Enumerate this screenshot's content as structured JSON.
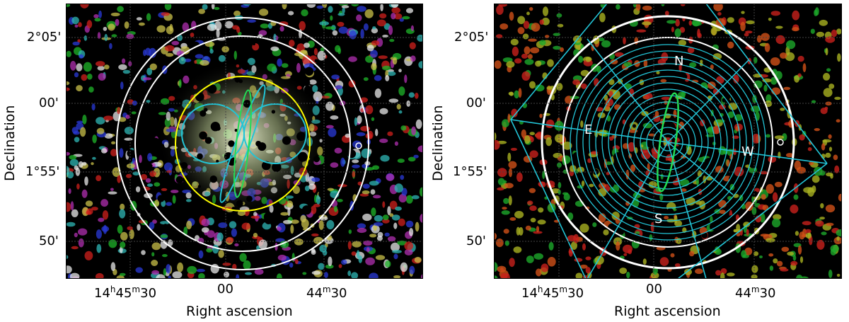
{
  "panels": [
    {
      "id": "left",
      "y_ticks": [
        "2°05'",
        "00'",
        "1°55'",
        "50'"
      ],
      "x_ticks": [
        {
          "h": "14",
          "m": "45",
          "s": "30"
        },
        {
          "text": "00"
        },
        {
          "m": "44",
          "s": "30"
        }
      ],
      "xlabel": "Right ascension",
      "ylabel": "Declination",
      "colors": {
        "outer_circles": "#ffffff",
        "inner_circle": "#ffff00",
        "lobes": "#22c4d6",
        "ellipse": "#22dd55"
      }
    },
    {
      "id": "right",
      "y_ticks": [
        "2°05'",
        "00'",
        "1°55'",
        "50'"
      ],
      "x_ticks": [
        {
          "h": "14",
          "m": "45",
          "s": "30"
        },
        {
          "text": "00"
        },
        {
          "m": "44",
          "s": "30"
        }
      ],
      "xlabel": "Right ascension",
      "ylabel": "Declination",
      "directions": {
        "north": "N",
        "south": "S",
        "east": "E",
        "west": "W"
      },
      "colors": {
        "outer_circle": "#ffffff",
        "annuli": "#22c4d6",
        "ellipse": "#22dd55"
      }
    }
  ]
}
